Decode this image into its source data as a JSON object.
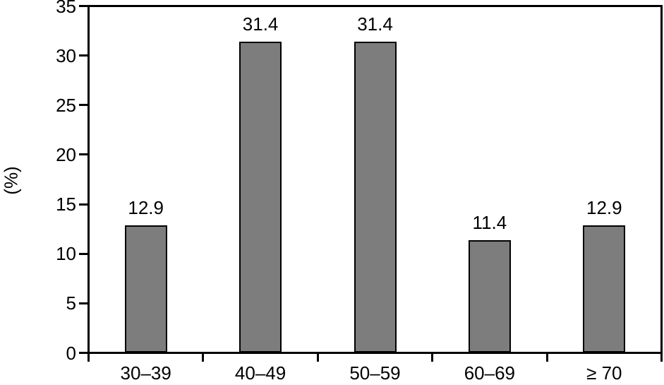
{
  "chart_data": {
    "type": "bar",
    "title": "",
    "xlabel": "",
    "ylabel": "(%)",
    "categories": [
      "30–39",
      "40–49",
      "50–59",
      "60–69",
      "≥ 70"
    ],
    "values": [
      12.9,
      31.4,
      31.4,
      11.4,
      12.9
    ],
    "value_labels": [
      "12.9",
      "31.4",
      "31.4",
      "11.4",
      "12.9"
    ],
    "ylim": [
      0,
      35
    ],
    "yticks": [
      0,
      5,
      10,
      15,
      20,
      25,
      30,
      35
    ],
    "grid": false,
    "legend": "none",
    "frame": "full-box",
    "bar_fill_color": "#7d7d7d",
    "bar_border_color": "#000000",
    "axis_color": "#000000",
    "text_color": "#000000",
    "background_color": "#ffffff"
  }
}
